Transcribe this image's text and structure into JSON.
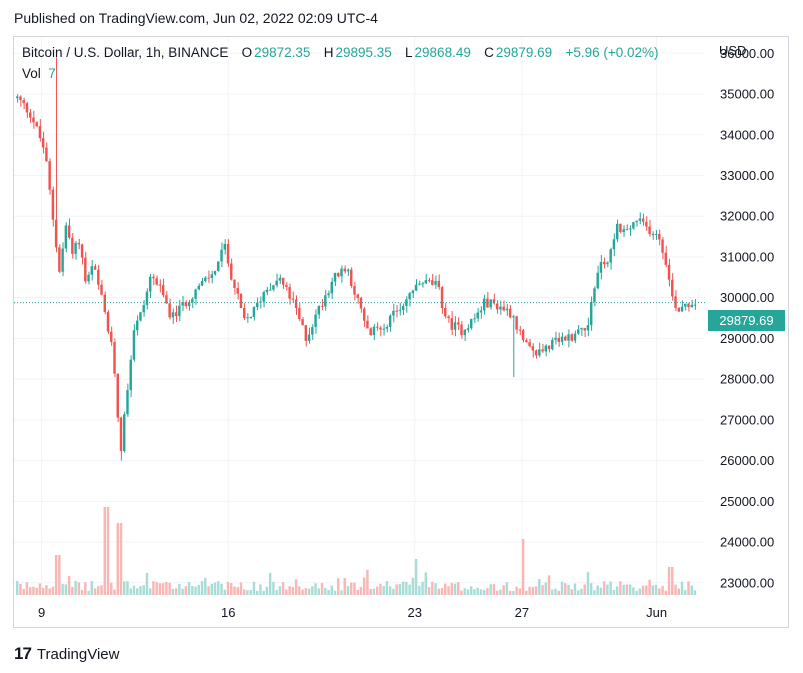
{
  "header": {
    "published": "Published on TradingView.com, Jun 02, 2022 02:09 UTC-4"
  },
  "legend": {
    "symbol": "Bitcoin / U.S. Dollar, 1h, BINANCE",
    "o_label": "O",
    "o_value": "29872.35",
    "h_label": "H",
    "h_value": "29895.35",
    "l_label": "L",
    "l_value": "29868.49",
    "c_label": "C",
    "c_value": "29879.69",
    "change": "+5.96 (+0.02%)",
    "vol_label": "Vol",
    "vol_value": "7"
  },
  "axis": {
    "currency": "USD",
    "last_price": "29879.69"
  },
  "footer": {
    "brand": "TradingView",
    "logo": "17"
  },
  "colors": {
    "up": "#26a69a",
    "down": "#ef5350",
    "grid": "#f0f3fa",
    "vol_up": "#a8dcd7",
    "vol_down": "#f8b6b4"
  },
  "chart_data": {
    "type": "candlestick",
    "symbol": "Bitcoin / U.S. Dollar",
    "interval": "1h",
    "exchange": "BINANCE",
    "y_ticks": [
      23000,
      24000,
      25000,
      26000,
      27000,
      28000,
      29000,
      30000,
      31000,
      32000,
      33000,
      34000,
      35000,
      36000
    ],
    "y_tick_labels": [
      "23000.00",
      "24000.00",
      "25000.00",
      "26000.00",
      "27000.00",
      "28000.00",
      "29000.00",
      "30000.00",
      "31000.00",
      "32000.00",
      "33000.00",
      "34000.00",
      "35000.00",
      "36000.00"
    ],
    "ylim": [
      22700,
      36400
    ],
    "x_ticks": [
      {
        "label": "9",
        "t": 0.04
      },
      {
        "label": "16",
        "t": 0.31
      },
      {
        "label": "23",
        "t": 0.58
      },
      {
        "label": "27",
        "t": 0.735
      },
      {
        "label": "Jun",
        "t": 0.93
      }
    ],
    "last_price": 29879.69,
    "close_path": [
      [
        0.0,
        34900
      ],
      [
        0.02,
        34500
      ],
      [
        0.04,
        33600
      ],
      [
        0.055,
        31500
      ],
      [
        0.062,
        30600
      ],
      [
        0.07,
        31800
      ],
      [
        0.08,
        31200
      ],
      [
        0.09,
        31400
      ],
      [
        0.1,
        30300
      ],
      [
        0.11,
        30800
      ],
      [
        0.125,
        29800
      ],
      [
        0.14,
        28500
      ],
      [
        0.15,
        26200
      ],
      [
        0.16,
        27800
      ],
      [
        0.17,
        29300
      ],
      [
        0.18,
        29600
      ],
      [
        0.195,
        30600
      ],
      [
        0.21,
        30100
      ],
      [
        0.225,
        29500
      ],
      [
        0.24,
        29800
      ],
      [
        0.26,
        30200
      ],
      [
        0.285,
        30600
      ],
      [
        0.3,
        31300
      ],
      [
        0.315,
        30300
      ],
      [
        0.33,
        29400
      ],
      [
        0.345,
        29700
      ],
      [
        0.36,
        30200
      ],
      [
        0.38,
        30500
      ],
      [
        0.4,
        29900
      ],
      [
        0.42,
        29000
      ],
      [
        0.44,
        29800
      ],
      [
        0.46,
        30500
      ],
      [
        0.48,
        30700
      ],
      [
        0.495,
        29900
      ],
      [
        0.51,
        29100
      ],
      [
        0.53,
        29300
      ],
      [
        0.55,
        29600
      ],
      [
        0.57,
        30100
      ],
      [
        0.59,
        30400
      ],
      [
        0.61,
        30300
      ],
      [
        0.625,
        29400
      ],
      [
        0.645,
        29200
      ],
      [
        0.665,
        29500
      ],
      [
        0.68,
        29900
      ],
      [
        0.7,
        29800
      ],
      [
        0.72,
        29600
      ],
      [
        0.735,
        28900
      ],
      [
        0.75,
        28600
      ],
      [
        0.77,
        28800
      ],
      [
        0.79,
        28950
      ],
      [
        0.81,
        29100
      ],
      [
        0.83,
        29400
      ],
      [
        0.845,
        30800
      ],
      [
        0.86,
        30900
      ],
      [
        0.87,
        31800
      ],
      [
        0.885,
        31600
      ],
      [
        0.9,
        31900
      ],
      [
        0.915,
        31700
      ],
      [
        0.93,
        31600
      ],
      [
        0.942,
        31000
      ],
      [
        0.95,
        30100
      ],
      [
        0.96,
        29700
      ],
      [
        0.97,
        29880
      ],
      [
        1.0,
        29880
      ]
    ],
    "wick_spikes": [
      {
        "t": 0.055,
        "high": 35900
      },
      {
        "t": 0.15,
        "low": 26000
      },
      {
        "t": 0.72,
        "low": 28050
      }
    ],
    "volume_spikes": [
      {
        "t": 0.06,
        "v": 1.0
      },
      {
        "t": 0.128,
        "v": 2.2
      },
      {
        "t": 0.15,
        "v": 1.8
      },
      {
        "t": 0.58,
        "v": 0.9
      },
      {
        "t": 0.735,
        "v": 1.4
      },
      {
        "t": 0.95,
        "v": 0.7
      }
    ]
  }
}
